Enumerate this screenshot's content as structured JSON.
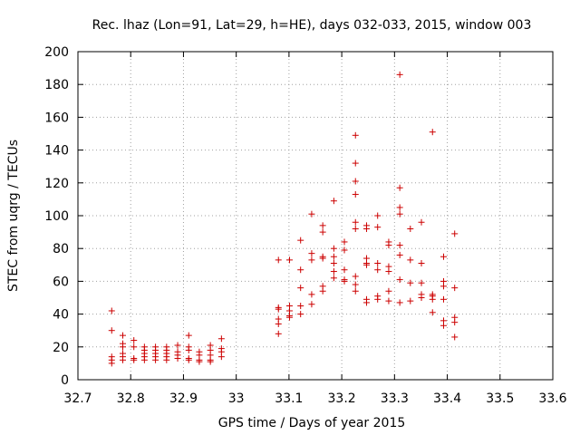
{
  "chart_data": {
    "type": "scatter",
    "title": "Rec. lhaz (Lon=91, Lat=29, h=HE), days 032-033, 2015, window 003",
    "xlabel": "GPS time / Days of year 2015",
    "ylabel": "STEC from uqrg / TECUs",
    "xlim": [
      32.7,
      33.6
    ],
    "ylim": [
      0,
      200
    ],
    "xticks": [
      "32.7",
      "32.8",
      "32.9",
      "33",
      "33.1",
      "33.2",
      "33.3",
      "33.4",
      "33.5",
      "33.6"
    ],
    "yticks": [
      "0",
      "20",
      "40",
      "60",
      "80",
      "100",
      "120",
      "140",
      "160",
      "180",
      "200"
    ],
    "grid": true,
    "marker": "+",
    "colors": {
      "points": "#cc0000"
    },
    "series": [
      {
        "points": [
          [
            32.764,
            42
          ],
          [
            32.764,
            30
          ],
          [
            32.764,
            14
          ],
          [
            32.764,
            12
          ],
          [
            32.764,
            10
          ],
          [
            32.785,
            27
          ],
          [
            32.785,
            22
          ],
          [
            32.785,
            20
          ],
          [
            32.785,
            16
          ],
          [
            32.785,
            14
          ],
          [
            32.785,
            12
          ],
          [
            32.806,
            24
          ],
          [
            32.806,
            20
          ],
          [
            32.806,
            13
          ],
          [
            32.806,
            12
          ],
          [
            32.826,
            20
          ],
          [
            32.826,
            18
          ],
          [
            32.826,
            16
          ],
          [
            32.826,
            14
          ],
          [
            32.826,
            12
          ],
          [
            32.847,
            20
          ],
          [
            32.847,
            18
          ],
          [
            32.847,
            16
          ],
          [
            32.847,
            14
          ],
          [
            32.847,
            12
          ],
          [
            32.868,
            20
          ],
          [
            32.868,
            18
          ],
          [
            32.868,
            16
          ],
          [
            32.868,
            14
          ],
          [
            32.868,
            12
          ],
          [
            32.889,
            21
          ],
          [
            32.889,
            17
          ],
          [
            32.889,
            15
          ],
          [
            32.889,
            13
          ],
          [
            32.91,
            27
          ],
          [
            32.91,
            20
          ],
          [
            32.91,
            18
          ],
          [
            32.91,
            13
          ],
          [
            32.91,
            12
          ],
          [
            32.93,
            17
          ],
          [
            32.93,
            15
          ],
          [
            32.93,
            12
          ],
          [
            32.93,
            11
          ],
          [
            32.951,
            21
          ],
          [
            32.951,
            18
          ],
          [
            32.951,
            15
          ],
          [
            32.951,
            12
          ],
          [
            32.951,
            11
          ],
          [
            32.972,
            25
          ],
          [
            32.972,
            19
          ],
          [
            32.972,
            17
          ],
          [
            32.972,
            14
          ],
          [
            33.08,
            73
          ],
          [
            33.08,
            44
          ],
          [
            33.08,
            43
          ],
          [
            33.08,
            37
          ],
          [
            33.08,
            34
          ],
          [
            33.08,
            28
          ],
          [
            33.101,
            73
          ],
          [
            33.101,
            45
          ],
          [
            33.101,
            42
          ],
          [
            33.101,
            39
          ],
          [
            33.101,
            38
          ],
          [
            33.122,
            85
          ],
          [
            33.122,
            67
          ],
          [
            33.122,
            56
          ],
          [
            33.122,
            45
          ],
          [
            33.122,
            40
          ],
          [
            33.143,
            101
          ],
          [
            33.143,
            77
          ],
          [
            33.143,
            73
          ],
          [
            33.143,
            52
          ],
          [
            33.143,
            46
          ],
          [
            33.164,
            94
          ],
          [
            33.164,
            90
          ],
          [
            33.164,
            75
          ],
          [
            33.164,
            74
          ],
          [
            33.164,
            57
          ],
          [
            33.164,
            54
          ],
          [
            33.185,
            109
          ],
          [
            33.185,
            80
          ],
          [
            33.185,
            75
          ],
          [
            33.185,
            71
          ],
          [
            33.185,
            66
          ],
          [
            33.185,
            62
          ],
          [
            33.205,
            84
          ],
          [
            33.205,
            79
          ],
          [
            33.205,
            67
          ],
          [
            33.205,
            61
          ],
          [
            33.205,
            60
          ],
          [
            33.226,
            149
          ],
          [
            33.226,
            132
          ],
          [
            33.226,
            121
          ],
          [
            33.226,
            113
          ],
          [
            33.226,
            96
          ],
          [
            33.226,
            92
          ],
          [
            33.226,
            63
          ],
          [
            33.226,
            58
          ],
          [
            33.226,
            54
          ],
          [
            33.247,
            94
          ],
          [
            33.247,
            92
          ],
          [
            33.247,
            74
          ],
          [
            33.247,
            71
          ],
          [
            33.247,
            70
          ],
          [
            33.247,
            49
          ],
          [
            33.247,
            47
          ],
          [
            33.268,
            100
          ],
          [
            33.268,
            93
          ],
          [
            33.268,
            71
          ],
          [
            33.268,
            67
          ],
          [
            33.268,
            51
          ],
          [
            33.268,
            49
          ],
          [
            33.289,
            84
          ],
          [
            33.289,
            82
          ],
          [
            33.289,
            69
          ],
          [
            33.289,
            66
          ],
          [
            33.289,
            54
          ],
          [
            33.289,
            48
          ],
          [
            33.31,
            186
          ],
          [
            33.31,
            117
          ],
          [
            33.31,
            105
          ],
          [
            33.31,
            101
          ],
          [
            33.31,
            82
          ],
          [
            33.31,
            76
          ],
          [
            33.31,
            61
          ],
          [
            33.31,
            47
          ],
          [
            33.33,
            92
          ],
          [
            33.33,
            73
          ],
          [
            33.33,
            59
          ],
          [
            33.33,
            48
          ],
          [
            33.351,
            96
          ],
          [
            33.351,
            71
          ],
          [
            33.351,
            59
          ],
          [
            33.351,
            52
          ],
          [
            33.351,
            50
          ],
          [
            33.372,
            151
          ],
          [
            33.372,
            52
          ],
          [
            33.372,
            51
          ],
          [
            33.372,
            49
          ],
          [
            33.372,
            41
          ],
          [
            33.393,
            75
          ],
          [
            33.393,
            60
          ],
          [
            33.393,
            57
          ],
          [
            33.393,
            49
          ],
          [
            33.393,
            36
          ],
          [
            33.393,
            33
          ],
          [
            33.414,
            89
          ],
          [
            33.414,
            56
          ],
          [
            33.414,
            38
          ],
          [
            33.414,
            35
          ],
          [
            33.414,
            26
          ]
        ]
      }
    ]
  }
}
